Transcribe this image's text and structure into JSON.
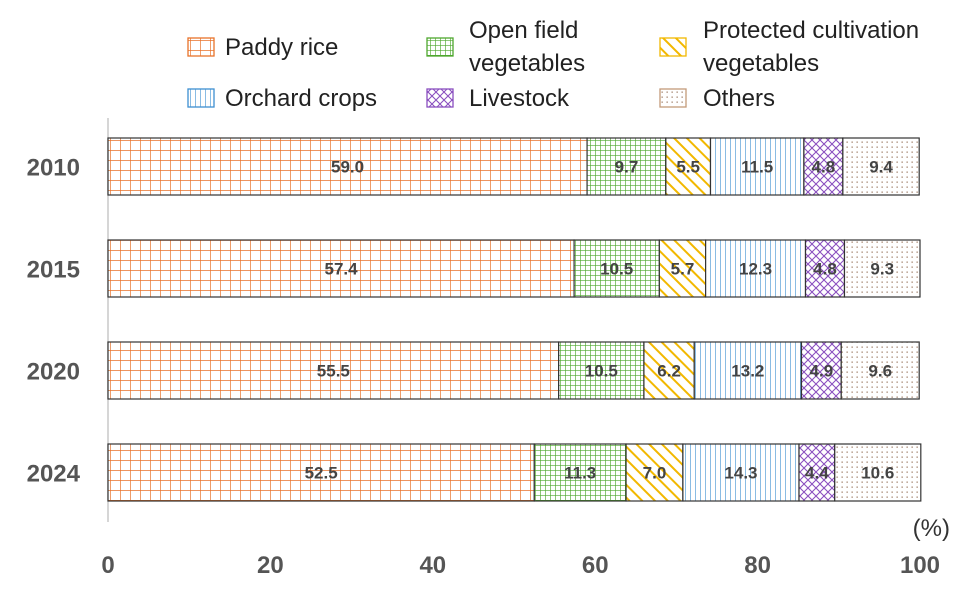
{
  "chart_data": {
    "type": "bar",
    "orientation": "horizontal",
    "stacked": true,
    "categories": [
      "2010",
      "2015",
      "2020",
      "2024"
    ],
    "series": [
      {
        "name": "Paddy  rice",
        "values": [
          59.0,
          57.4,
          55.5,
          52.5
        ],
        "labels": [
          "59.0",
          "57.4",
          "55.5",
          "52.5"
        ],
        "color": "#e8722a",
        "pattern": "grid"
      },
      {
        "name": "Open  field vegetables",
        "values": [
          9.7,
          10.5,
          10.5,
          11.3
        ],
        "labels": [
          "9.7",
          "10.5",
          "10.5",
          "11.3"
        ],
        "color": "#4ea72e",
        "pattern": "dense-grid"
      },
      {
        "name": "Protected  cultivation vegetables",
        "values": [
          5.5,
          5.7,
          6.2,
          7.0
        ],
        "labels": [
          "5.5",
          "5.7",
          "6.2",
          "7.0"
        ],
        "color": "#f2b800",
        "pattern": "diagonal"
      },
      {
        "name": "Orchard crops",
        "values": [
          11.5,
          12.3,
          13.2,
          14.3
        ],
        "labels": [
          "11.5",
          "12.3",
          "13.2",
          "14.3"
        ],
        "color": "#3d8fd1",
        "pattern": "vertical"
      },
      {
        "name": "Livestock",
        "values": [
          4.8,
          4.8,
          4.9,
          4.4
        ],
        "labels": [
          "4.8",
          "4.8",
          "4.9",
          "4.4"
        ],
        "color": "#8a4fbf",
        "pattern": "crosshatch"
      },
      {
        "name": "Others",
        "values": [
          9.4,
          9.3,
          9.6,
          10.6
        ],
        "labels": [
          "9.4",
          "9.3",
          "9.6",
          "10.6"
        ],
        "color": "#c49a7a",
        "pattern": "dots"
      }
    ],
    "xlim": [
      0,
      100
    ],
    "xticks": [
      "0",
      "20",
      "40",
      "60",
      "80",
      "100"
    ],
    "unit": "(%)",
    "legend_position": "top",
    "grid": false
  }
}
